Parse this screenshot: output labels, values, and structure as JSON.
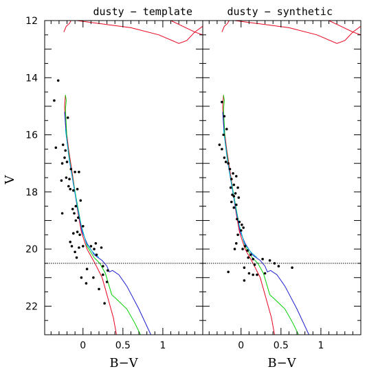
{
  "chart_data": {
    "type": "scatter",
    "ylabel": "V",
    "y_inverted": true,
    "ylim": [
      23.0,
      12.0
    ],
    "y_ticks": [
      12,
      14,
      16,
      18,
      20,
      22
    ],
    "limit_line_V": 20.5,
    "colors": {
      "points": "#000000",
      "isochrone_red": "#e8001c",
      "isochrone_green": "#00d000",
      "isochrone_blue": "#1a1ad0",
      "isochrone_cyan": "#00b8d0",
      "limit_line": "#000000"
    },
    "panels": [
      {
        "title": "dusty − template",
        "xlabel": "B−V",
        "xlim": [
          -0.48,
          1.5
        ],
        "x_ticks": [
          0,
          0.5,
          1
        ],
        "x_tick_labels": [
          "0",
          "0.5",
          "1"
        ],
        "series": [
          {
            "color": "red",
            "points": [
              [
                -0.22,
                14.62
              ],
              [
                -0.23,
                15.0
              ],
              [
                -0.22,
                15.6
              ],
              [
                -0.18,
                16.5
              ],
              [
                -0.12,
                17.6
              ],
              [
                -0.07,
                18.6
              ],
              [
                -0.02,
                19.4
              ],
              [
                0.05,
                20.0
              ],
              [
                0.15,
                20.5
              ],
              [
                0.24,
                21.0
              ],
              [
                0.31,
                21.7
              ],
              [
                0.38,
                22.4
              ],
              [
                0.42,
                23.0
              ]
            ]
          },
          {
            "color": "red",
            "points": [
              [
                -0.24,
                12.4
              ],
              [
                -0.21,
                12.2
              ],
              [
                -0.17,
                12.1
              ],
              [
                -0.15,
                12.0
              ]
            ]
          },
          {
            "color": "red",
            "points": [
              [
                -0.08,
                12.0
              ],
              [
                0.2,
                12.1
              ],
              [
                0.6,
                12.25
              ],
              [
                0.95,
                12.5
              ],
              [
                1.2,
                12.8
              ],
              [
                1.3,
                12.7
              ],
              [
                1.4,
                12.4
              ],
              [
                1.5,
                12.2
              ]
            ]
          },
          {
            "color": "red",
            "points": [
              [
                1.1,
                12.0
              ],
              [
                1.25,
                12.2
              ],
              [
                1.4,
                12.4
              ],
              [
                1.5,
                12.5
              ]
            ]
          },
          {
            "color": "green",
            "points": [
              [
                -0.22,
                14.6
              ],
              [
                -0.21,
                14.8
              ],
              [
                -0.22,
                15.1
              ],
              [
                -0.2,
                16.2
              ],
              [
                -0.15,
                17.2
              ],
              [
                -0.08,
                18.3
              ],
              [
                -0.02,
                19.2
              ],
              [
                0.05,
                19.9
              ],
              [
                0.14,
                20.3
              ],
              [
                0.21,
                20.5
              ],
              [
                0.28,
                20.85
              ],
              [
                0.36,
                21.6
              ],
              [
                0.42,
                21.75
              ],
              [
                0.55,
                22.1
              ],
              [
                0.65,
                22.6
              ],
              [
                0.72,
                23.0
              ]
            ]
          },
          {
            "color": "blue",
            "points": [
              [
                -0.23,
                15.2
              ],
              [
                -0.21,
                16.0
              ],
              [
                -0.17,
                16.9
              ],
              [
                -0.11,
                17.9
              ],
              [
                -0.06,
                18.7
              ],
              [
                -0.01,
                19.4
              ],
              [
                0.05,
                19.8
              ],
              [
                0.14,
                20.2
              ],
              [
                0.24,
                20.4
              ],
              [
                0.3,
                20.6
              ],
              [
                0.33,
                20.8
              ],
              [
                0.37,
                20.75
              ],
              [
                0.45,
                20.9
              ],
              [
                0.55,
                21.3
              ],
              [
                0.7,
                22.1
              ],
              [
                0.85,
                23.0
              ]
            ]
          },
          {
            "color": "cyan",
            "points": [
              [
                -0.22,
                15.8
              ],
              [
                -0.18,
                16.7
              ],
              [
                -0.12,
                17.7
              ],
              [
                -0.07,
                18.5
              ],
              [
                -0.02,
                19.2
              ],
              [
                0.04,
                19.8
              ],
              [
                0.12,
                20.1
              ],
              [
                0.2,
                20.3
              ]
            ]
          }
        ],
        "points": [
          [
            -0.31,
            14.1
          ],
          [
            -0.36,
            14.8
          ],
          [
            -0.19,
            15.4
          ],
          [
            -0.34,
            16.45
          ],
          [
            -0.25,
            16.35
          ],
          [
            -0.22,
            16.55
          ],
          [
            -0.23,
            16.8
          ],
          [
            -0.26,
            17.0
          ],
          [
            -0.2,
            16.95
          ],
          [
            -0.21,
            17.5
          ],
          [
            -0.27,
            17.6
          ],
          [
            -0.18,
            17.8
          ],
          [
            -0.1,
            17.3
          ],
          [
            -0.05,
            17.3
          ],
          [
            -0.16,
            17.9
          ],
          [
            -0.12,
            17.95
          ],
          [
            -0.17,
            17.55
          ],
          [
            -0.15,
            17.2
          ],
          [
            -0.07,
            17.9
          ],
          [
            -0.03,
            18.3
          ],
          [
            -0.13,
            18.6
          ],
          [
            -0.09,
            18.5
          ],
          [
            -0.11,
            18.75
          ],
          [
            -0.26,
            18.75
          ],
          [
            -0.06,
            18.9
          ],
          [
            -0.09,
            19.0
          ],
          [
            0.0,
            19.2
          ],
          [
            -0.04,
            19.5
          ],
          [
            -0.07,
            19.4
          ],
          [
            -0.12,
            19.45
          ],
          [
            -0.16,
            19.75
          ],
          [
            -0.14,
            19.9
          ],
          [
            -0.05,
            19.95
          ],
          [
            0.0,
            19.9
          ],
          [
            -0.1,
            20.1
          ],
          [
            -0.08,
            20.3
          ],
          [
            0.1,
            19.9
          ],
          [
            0.14,
            20.0
          ],
          [
            0.17,
            20.2
          ],
          [
            0.23,
            19.95
          ],
          [
            0.16,
            19.8
          ],
          [
            0.25,
            20.6
          ],
          [
            0.31,
            20.75
          ],
          [
            0.25,
            20.9
          ],
          [
            0.13,
            21.0
          ],
          [
            0.2,
            21.4
          ],
          [
            0.3,
            21.15
          ],
          [
            0.27,
            21.9
          ],
          [
            0.05,
            20.7
          ],
          [
            -0.02,
            21.0
          ],
          [
            0.04,
            21.2
          ]
        ]
      },
      {
        "title": "dusty − synthetic",
        "xlabel": "B−V",
        "xlim": [
          -0.48,
          1.5
        ],
        "x_ticks": [
          0,
          0.5,
          1
        ],
        "x_tick_labels": [
          "0",
          "0.5",
          "1"
        ],
        "series": [
          {
            "color": "red",
            "points": [
              [
                -0.22,
                14.62
              ],
              [
                -0.23,
                15.0
              ],
              [
                -0.22,
                15.6
              ],
              [
                -0.18,
                16.5
              ],
              [
                -0.12,
                17.6
              ],
              [
                -0.07,
                18.6
              ],
              [
                -0.02,
                19.4
              ],
              [
                0.05,
                20.0
              ],
              [
                0.15,
                20.5
              ],
              [
                0.24,
                21.0
              ],
              [
                0.31,
                21.7
              ],
              [
                0.38,
                22.4
              ],
              [
                0.42,
                23.0
              ]
            ]
          },
          {
            "color": "red",
            "points": [
              [
                -0.24,
                12.4
              ],
              [
                -0.21,
                12.2
              ],
              [
                -0.17,
                12.1
              ],
              [
                -0.15,
                12.0
              ]
            ]
          },
          {
            "color": "red",
            "points": [
              [
                -0.08,
                12.0
              ],
              [
                0.2,
                12.1
              ],
              [
                0.6,
                12.25
              ],
              [
                0.95,
                12.5
              ],
              [
                1.2,
                12.8
              ],
              [
                1.3,
                12.7
              ],
              [
                1.4,
                12.4
              ],
              [
                1.5,
                12.2
              ]
            ]
          },
          {
            "color": "red",
            "points": [
              [
                1.1,
                12.0
              ],
              [
                1.25,
                12.2
              ],
              [
                1.4,
                12.4
              ],
              [
                1.5,
                12.5
              ]
            ]
          },
          {
            "color": "green",
            "points": [
              [
                -0.22,
                14.6
              ],
              [
                -0.21,
                14.8
              ],
              [
                -0.22,
                15.1
              ],
              [
                -0.2,
                16.2
              ],
              [
                -0.15,
                17.2
              ],
              [
                -0.08,
                18.3
              ],
              [
                -0.02,
                19.2
              ],
              [
                0.05,
                19.9
              ],
              [
                0.14,
                20.3
              ],
              [
                0.21,
                20.5
              ],
              [
                0.28,
                20.85
              ],
              [
                0.36,
                21.6
              ],
              [
                0.42,
                21.75
              ],
              [
                0.55,
                22.1
              ],
              [
                0.65,
                22.6
              ],
              [
                0.72,
                23.0
              ]
            ]
          },
          {
            "color": "blue",
            "points": [
              [
                -0.23,
                15.2
              ],
              [
                -0.21,
                16.0
              ],
              [
                -0.17,
                16.9
              ],
              [
                -0.11,
                17.9
              ],
              [
                -0.06,
                18.7
              ],
              [
                -0.01,
                19.4
              ],
              [
                0.05,
                19.8
              ],
              [
                0.14,
                20.2
              ],
              [
                0.24,
                20.4
              ],
              [
                0.3,
                20.6
              ],
              [
                0.33,
                20.8
              ],
              [
                0.37,
                20.75
              ],
              [
                0.45,
                20.9
              ],
              [
                0.55,
                21.3
              ],
              [
                0.7,
                22.1
              ],
              [
                0.85,
                23.0
              ]
            ]
          },
          {
            "color": "cyan",
            "points": [
              [
                -0.22,
                15.8
              ],
              [
                -0.18,
                16.7
              ],
              [
                -0.12,
                17.7
              ],
              [
                -0.07,
                18.5
              ],
              [
                -0.02,
                19.2
              ],
              [
                0.04,
                19.8
              ],
              [
                0.12,
                20.1
              ],
              [
                0.2,
                20.3
              ]
            ]
          }
        ],
        "points": [
          [
            -0.24,
            14.85
          ],
          [
            -0.21,
            15.35
          ],
          [
            -0.18,
            15.8
          ],
          [
            -0.22,
            16.0
          ],
          [
            -0.27,
            16.35
          ],
          [
            -0.24,
            16.5
          ],
          [
            -0.21,
            16.8
          ],
          [
            -0.19,
            16.95
          ],
          [
            -0.16,
            17.0
          ],
          [
            -0.14,
            17.2
          ],
          [
            -0.1,
            17.35
          ],
          [
            -0.06,
            17.45
          ],
          [
            -0.12,
            17.55
          ],
          [
            -0.09,
            17.75
          ],
          [
            -0.13,
            17.85
          ],
          [
            -0.04,
            17.85
          ],
          [
            -0.07,
            18.05
          ],
          [
            -0.11,
            18.1
          ],
          [
            -0.09,
            18.15
          ],
          [
            -0.03,
            18.2
          ],
          [
            -0.12,
            18.35
          ],
          [
            -0.06,
            18.45
          ],
          [
            -0.09,
            18.55
          ],
          [
            -0.05,
            18.95
          ],
          [
            -0.02,
            19.05
          ],
          [
            0.01,
            19.15
          ],
          [
            0.03,
            19.25
          ],
          [
            0.0,
            19.35
          ],
          [
            -0.04,
            19.5
          ],
          [
            -0.06,
            19.8
          ],
          [
            -0.08,
            20.0
          ],
          [
            0.02,
            20.0
          ],
          [
            0.05,
            19.9
          ],
          [
            0.08,
            20.05
          ],
          [
            0.12,
            20.2
          ],
          [
            0.09,
            20.3
          ],
          [
            0.15,
            20.35
          ],
          [
            0.27,
            20.35
          ],
          [
            0.36,
            20.4
          ],
          [
            0.47,
            20.6
          ],
          [
            0.42,
            20.5
          ],
          [
            0.64,
            20.65
          ],
          [
            0.17,
            20.55
          ],
          [
            0.04,
            20.65
          ],
          [
            0.1,
            20.85
          ],
          [
            0.2,
            20.9
          ],
          [
            0.15,
            20.9
          ],
          [
            0.04,
            21.1
          ],
          [
            0.3,
            20.85
          ],
          [
            -0.16,
            20.8
          ]
        ]
      }
    ]
  }
}
